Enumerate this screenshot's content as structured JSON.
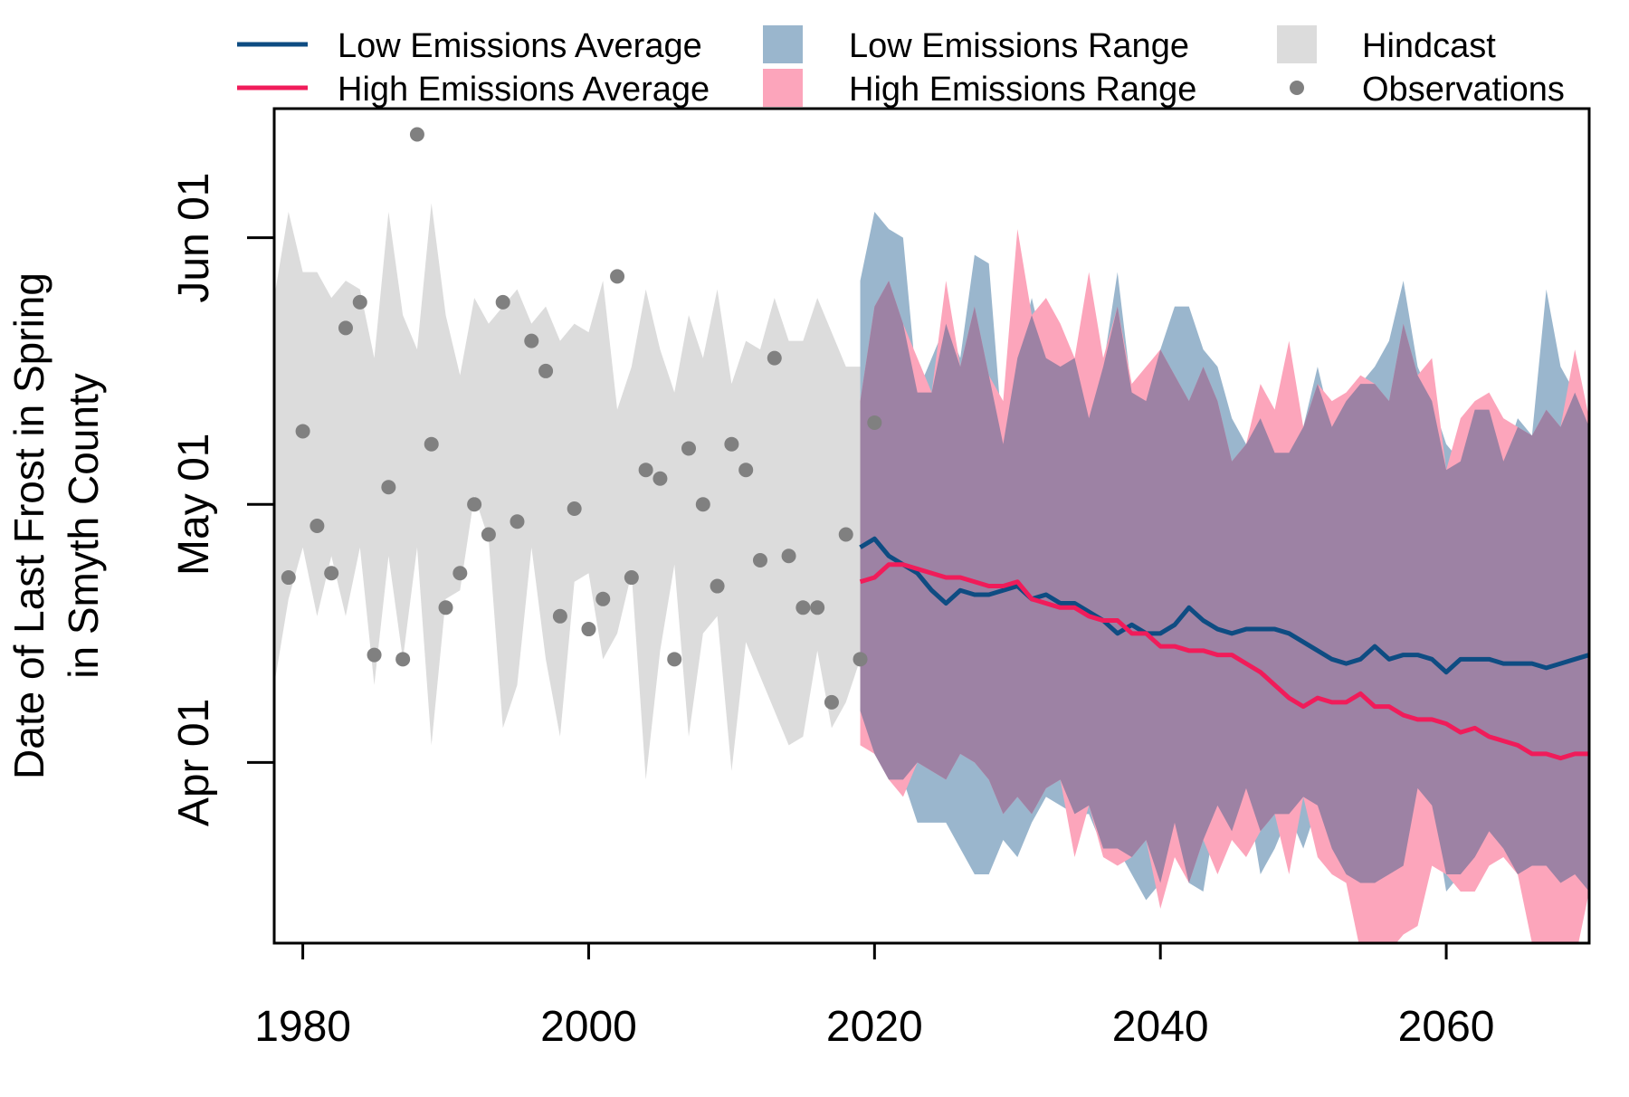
{
  "chart_data": {
    "type": "line",
    "ylabel_lines": [
      "Date of Last Frost in Spring",
      "in Smyth County"
    ],
    "xlim": [
      1978,
      2070
    ],
    "ylim_day_of_year": [
      70,
      167
    ],
    "x_ticks": [
      1980,
      2000,
      2020,
      2040,
      2060
    ],
    "y_ticks": [
      {
        "label": "Apr 01",
        "day": 91
      },
      {
        "label": "May 01",
        "day": 121
      },
      {
        "label": "Jun 01",
        "day": 152
      }
    ],
    "grid": false,
    "legend_position": "top",
    "colors": {
      "low_avg": "#0e4c82",
      "high_avg": "#f01c5a",
      "low_range": "#9ab6cd",
      "high_range": "#fca5bb",
      "overlap": "#9d82a4",
      "hindcast": "#dcdcdc",
      "obs": "#808080"
    },
    "legend": [
      {
        "key": "low_avg",
        "label": "Low Emissions Average",
        "kind": "line"
      },
      {
        "key": "high_avg",
        "label": "High Emissions Average",
        "kind": "line"
      },
      {
        "key": "low_range",
        "label": "Low Emissions Range",
        "kind": "box"
      },
      {
        "key": "high_range",
        "label": "High Emissions Range",
        "kind": "box"
      },
      {
        "key": "hindcast",
        "label": "Hindcast",
        "kind": "box"
      },
      {
        "key": "obs",
        "label": "Observations",
        "kind": "point"
      }
    ],
    "hindcast": {
      "x": [
        1978,
        1979,
        1980,
        1981,
        1982,
        1983,
        1984,
        1985,
        1986,
        1987,
        1988,
        1989,
        1990,
        1991,
        1992,
        1993,
        1994,
        1995,
        1996,
        1997,
        1998,
        1999,
        2000,
        2001,
        2002,
        2003,
        2004,
        2005,
        2006,
        2007,
        2008,
        2009,
        2010,
        2011,
        2012,
        2013,
        2014,
        2015,
        2016,
        2017,
        2018,
        2019
      ],
      "low": [
        100,
        110,
        116,
        108,
        115,
        108,
        116,
        100,
        115,
        103,
        116,
        93,
        110,
        111,
        122,
        117,
        95,
        100,
        116,
        103,
        94,
        112,
        113,
        103,
        106,
        113,
        89,
        104,
        114,
        94,
        106,
        108,
        90,
        105,
        101,
        97,
        93,
        94,
        104,
        95,
        98,
        103
      ],
      "high": [
        145,
        155,
        148,
        148,
        145,
        147,
        146,
        138,
        155,
        143,
        139,
        156,
        143,
        136,
        145,
        142,
        144,
        146,
        142,
        144,
        140,
        142,
        141,
        147,
        132,
        137,
        146,
        139,
        134,
        143,
        138,
        146,
        135,
        140,
        139,
        145,
        140,
        140,
        145,
        141,
        137,
        137
      ]
    },
    "observations": {
      "x": [
        1979,
        1980,
        1981,
        1982,
        1983,
        1984,
        1985,
        1986,
        1987,
        1988,
        1989,
        1990,
        1991,
        1992,
        1993,
        1994,
        1995,
        1996,
        1997,
        1998,
        1999,
        2000,
        2001,
        2002,
        2003,
        2004,
        2005,
        2006,
        2007,
        2008,
        2009,
        2010,
        2011,
        2012,
        2013,
        2014,
        2015,
        2016,
        2017,
        2018,
        2019,
        2020
      ],
      "day": [
        112.5,
        129.5,
        118.5,
        113,
        141.5,
        144.5,
        103.5,
        123,
        103,
        164,
        128,
        109,
        113,
        121,
        117.5,
        144.5,
        119,
        140,
        136.5,
        108,
        120.5,
        106.5,
        110,
        147.5,
        112.5,
        125,
        124,
        103,
        127.5,
        121,
        111.5,
        128,
        125,
        114.5,
        138,
        115,
        109,
        109,
        98,
        117.5,
        103,
        130.5
      ]
    },
    "projection_years": [
      2019,
      2020,
      2021,
      2022,
      2023,
      2024,
      2025,
      2026,
      2027,
      2028,
      2029,
      2030,
      2031,
      2032,
      2033,
      2034,
      2035,
      2036,
      2037,
      2038,
      2039,
      2040,
      2041,
      2042,
      2043,
      2044,
      2045,
      2046,
      2047,
      2048,
      2049,
      2050,
      2051,
      2052,
      2053,
      2054,
      2055,
      2056,
      2057,
      2058,
      2059,
      2060,
      2061,
      2062,
      2063,
      2064,
      2065,
      2066,
      2067,
      2068,
      2069,
      2070
    ],
    "series": [
      {
        "name": "Low Emissions Average",
        "key": "low_avg",
        "values": [
          116,
          117,
          115,
          114,
          113,
          111,
          109.5,
          111,
          110.5,
          110.5,
          111,
          111.5,
          110,
          110.5,
          109.5,
          109.5,
          108.5,
          107.5,
          106,
          107,
          106,
          106,
          107,
          109,
          107.5,
          106.5,
          106,
          106.5,
          106.5,
          106.5,
          106,
          105,
          104,
          103,
          102.5,
          103,
          104.5,
          103,
          103.5,
          103.5,
          103,
          101.5,
          103,
          103,
          103,
          102.5,
          102.5,
          102.5,
          102,
          102.5,
          103,
          103.5
        ]
      },
      {
        "name": "High Emissions Average",
        "key": "high_avg",
        "values": [
          112,
          112.5,
          114,
          114,
          113.5,
          113,
          112.5,
          112.5,
          112,
          111.5,
          111.5,
          112,
          110,
          109.5,
          109,
          109,
          108,
          107.5,
          107.5,
          106,
          106,
          104.5,
          104.5,
          104,
          104,
          103.5,
          103.5,
          102.5,
          101.5,
          100,
          98.5,
          97.5,
          98.5,
          98,
          98,
          99,
          97.5,
          97.5,
          96.5,
          96,
          96,
          95.5,
          94.5,
          95,
          94,
          93.5,
          93,
          92,
          92,
          91.5,
          92,
          92
        ]
      }
    ],
    "low_range": {
      "low": [
        97,
        92,
        89,
        89,
        84,
        84,
        84,
        81,
        78,
        78,
        82,
        80,
        84,
        87,
        86,
        85,
        85,
        81,
        81,
        78,
        75,
        77,
        84,
        77,
        76,
        86,
        83,
        88,
        78,
        81,
        85,
        81,
        86,
        81,
        78,
        77,
        77,
        78,
        79,
        88,
        86,
        76,
        78,
        80,
        83,
        81,
        78,
        79,
        79,
        77,
        78,
        76
      ],
      "high": [
        147,
        155,
        153,
        152,
        134,
        138,
        142,
        138,
        150,
        149,
        128,
        138,
        145,
        138,
        137,
        138,
        131,
        137,
        148,
        134,
        133,
        139,
        144,
        144,
        139,
        137,
        131,
        128,
        131,
        127,
        127,
        130,
        137,
        130,
        133,
        135,
        137,
        140,
        147,
        137,
        133,
        128,
        126,
        132,
        132,
        126,
        131,
        129,
        146,
        137,
        134,
        130
      ]
    },
    "high_range": {
      "low": [
        93,
        92,
        89,
        87,
        91,
        90,
        89,
        92,
        91,
        89,
        85,
        87,
        85,
        88,
        89,
        80,
        86,
        80,
        79,
        80,
        82,
        74,
        80,
        77,
        82,
        78,
        82,
        80,
        83,
        85,
        78,
        87,
        80,
        78,
        77,
        69,
        64,
        69,
        71,
        72,
        79,
        78,
        76,
        76,
        79,
        80,
        78,
        70,
        70,
        67,
        68,
        76
      ],
      "high": [
        133,
        144,
        147,
        142,
        138,
        134,
        147,
        137,
        144,
        136,
        133,
        153,
        143,
        145,
        142,
        138,
        148,
        138,
        144,
        135,
        137,
        139,
        136,
        133,
        137,
        133,
        126,
        128,
        135,
        132,
        140,
        130,
        135,
        133,
        134,
        136,
        135,
        133,
        142,
        136,
        138,
        125,
        131,
        133,
        134,
        131,
        130,
        129,
        132,
        130,
        139,
        131
      ]
    }
  }
}
